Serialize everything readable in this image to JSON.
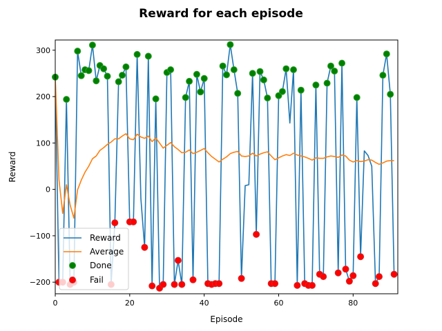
{
  "chart_data": {
    "type": "line",
    "title": "Reward for each episode",
    "xlabel": "Episode",
    "ylabel": "Reward",
    "xlim": [
      0,
      92
    ],
    "ylim": [
      -225,
      322
    ],
    "xticks": [
      0,
      20,
      40,
      60,
      80
    ],
    "yticks": [
      -200,
      -100,
      0,
      100,
      200,
      300
    ],
    "grid": false,
    "legend_position": "lower-left",
    "legend": [
      "Reward",
      "Average",
      "Done",
      "Fail"
    ],
    "colors": {
      "reward": "#1f77b4",
      "average": "#ff7f0e",
      "done_fill": "#008000",
      "done_edge": "#2ca02c",
      "fail_fill": "#ff0000",
      "fail_edge": "#d62728"
    },
    "series": [
      {
        "name": "Reward",
        "x": [
          0,
          1,
          2,
          3,
          4,
          5,
          6,
          7,
          8,
          9,
          10,
          11,
          12,
          13,
          14,
          15,
          16,
          17,
          18,
          19,
          20,
          21,
          22,
          23,
          24,
          25,
          26,
          27,
          28,
          29,
          30,
          31,
          32,
          33,
          34,
          35,
          36,
          37,
          38,
          39,
          40,
          41,
          42,
          43,
          44,
          45,
          46,
          47,
          48,
          49,
          50,
          51,
          52,
          53,
          54,
          55,
          56,
          57,
          58,
          59,
          60,
          61,
          62,
          63,
          64,
          65,
          66,
          67,
          68,
          69,
          70,
          71,
          72,
          73,
          74,
          75,
          76,
          77,
          78,
          79,
          80,
          81,
          82,
          83,
          84,
          85,
          86,
          87,
          88,
          89,
          90,
          91
        ],
        "values": [
          242,
          -200,
          -200,
          194,
          -205,
          -200,
          298,
          245,
          258,
          256,
          311,
          234,
          267,
          260,
          244,
          -205,
          -72,
          232,
          246,
          264,
          -70,
          -70,
          291,
          -20,
          -125,
          287,
          -208,
          195,
          -213,
          -205,
          252,
          258,
          -205,
          -153,
          -205,
          198,
          233,
          -195,
          248,
          210,
          239,
          -203,
          -205,
          -203,
          -203,
          266,
          247,
          312,
          258,
          207,
          -192,
          8,
          10,
          250,
          -97,
          254,
          236,
          197,
          -203,
          -203,
          202,
          211,
          260,
          143,
          258,
          -207,
          214,
          -203,
          -207,
          -207,
          225,
          -183,
          -188,
          229,
          266,
          255,
          -180,
          272,
          -172,
          -198,
          -186,
          198,
          -145,
          83,
          73,
          50,
          -203,
          -188,
          246,
          292,
          205,
          -183
        ]
      },
      {
        "name": "Average",
        "x": [
          0,
          1,
          2,
          3,
          4,
          5,
          6,
          7,
          8,
          9,
          10,
          11,
          12,
          13,
          14,
          15,
          16,
          17,
          18,
          19,
          20,
          21,
          22,
          23,
          24,
          25,
          26,
          27,
          28,
          29,
          30,
          31,
          32,
          33,
          34,
          35,
          36,
          37,
          38,
          39,
          40,
          41,
          42,
          43,
          44,
          45,
          46,
          47,
          48,
          49,
          50,
          51,
          52,
          53,
          54,
          55,
          56,
          57,
          58,
          59,
          60,
          61,
          62,
          63,
          64,
          65,
          66,
          67,
          68,
          69,
          70,
          71,
          72,
          73,
          74,
          75,
          76,
          77,
          78,
          79,
          80,
          81,
          82,
          83,
          84,
          85,
          86,
          87,
          88,
          89,
          90,
          91
        ],
        "values": [
          242,
          21,
          -52,
          10,
          -34,
          -62,
          -1,
          20,
          37,
          50,
          66,
          72,
          84,
          90,
          97,
          102,
          109,
          109,
          115,
          120,
          109,
          107,
          119,
          113,
          110,
          115,
          103,
          111,
          100,
          89,
          95,
          101,
          92,
          86,
          79,
          80,
          85,
          77,
          80,
          84,
          88,
          79,
          71,
          65,
          59,
          65,
          70,
          77,
          80,
          82,
          72,
          71,
          72,
          78,
          72,
          76,
          79,
          81,
          72,
          64,
          68,
          72,
          75,
          73,
          78,
          74,
          72,
          70,
          67,
          63,
          68,
          67,
          67,
          70,
          72,
          71,
          69,
          74,
          72,
          63,
          59,
          62,
          60,
          61,
          64,
          63,
          58,
          54,
          57,
          61,
          62,
          62
        ]
      }
    ],
    "done_points": {
      "x": [
        0,
        3,
        6,
        7,
        8,
        9,
        10,
        11,
        12,
        13,
        14,
        17,
        18,
        19,
        22,
        25,
        27,
        30,
        31,
        35,
        36,
        38,
        39,
        40,
        45,
        46,
        47,
        48,
        49,
        53,
        55,
        56,
        57,
        60,
        61,
        62,
        64,
        66,
        70,
        73,
        74,
        75,
        77,
        81,
        88,
        89,
        90
      ],
      "values": [
        242,
        194,
        298,
        245,
        258,
        256,
        311,
        234,
        267,
        260,
        244,
        232,
        246,
        264,
        291,
        287,
        195,
        252,
        258,
        198,
        233,
        248,
        210,
        239,
        266,
        247,
        312,
        258,
        207,
        250,
        254,
        236,
        197,
        202,
        211,
        260,
        258,
        214,
        225,
        229,
        266,
        255,
        272,
        198,
        246,
        292,
        205
      ]
    },
    "fail_points": {
      "x": [
        1,
        2,
        4,
        5,
        15,
        16,
        20,
        21,
        24,
        26,
        28,
        29,
        32,
        33,
        34,
        37,
        41,
        42,
        43,
        44,
        50,
        54,
        58,
        59,
        65,
        67,
        68,
        69,
        71,
        72,
        76,
        78,
        79,
        80,
        82,
        86,
        87,
        91
      ],
      "values": [
        -200,
        -200,
        -205,
        -200,
        -205,
        -72,
        -70,
        -70,
        -125,
        -208,
        -213,
        -205,
        -205,
        -153,
        -205,
        -195,
        -203,
        -205,
        -203,
        -203,
        -192,
        -97,
        -203,
        -203,
        -207,
        -203,
        -207,
        -207,
        -183,
        -188,
        -180,
        -172,
        -198,
        -186,
        -145,
        -203,
        -188,
        -183
      ]
    }
  }
}
